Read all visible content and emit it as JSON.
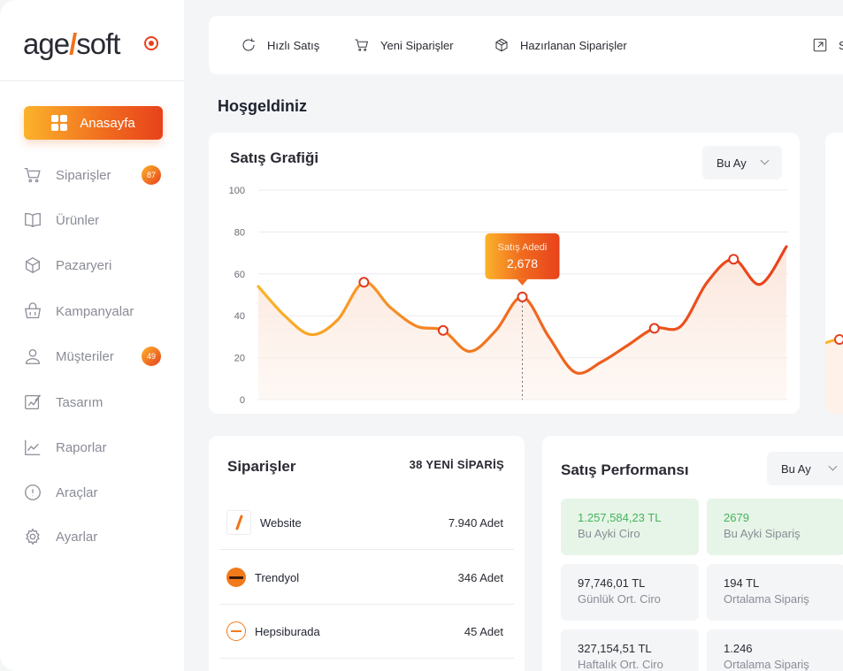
{
  "brand": {
    "name_left": "age",
    "name_right": "soft"
  },
  "sidebar": {
    "home": "Anasayfa",
    "items": [
      {
        "label": "Siparişler",
        "icon": "cart-icon",
        "badge": "87"
      },
      {
        "label": "Ürünler",
        "icon": "book-icon"
      },
      {
        "label": "Pazaryeri",
        "icon": "box-icon"
      },
      {
        "label": "Kampanyalar",
        "icon": "basket-icon"
      },
      {
        "label": "Müşteriler",
        "icon": "user-icon",
        "badge": "49"
      },
      {
        "label": "Tasarım",
        "icon": "design-icon"
      },
      {
        "label": "Raporlar",
        "icon": "chart-icon"
      },
      {
        "label": "Araçlar",
        "icon": "info-icon"
      },
      {
        "label": "Ayarlar",
        "icon": "gear-icon"
      }
    ]
  },
  "topbar": {
    "items": [
      {
        "label": "Hızlı Satış",
        "icon": "refresh-icon"
      },
      {
        "label": "Yeni Siparişler",
        "icon": "cart-icon"
      },
      {
        "label": "Hazırlanan Siparişler",
        "icon": "package-icon"
      },
      {
        "label": "S",
        "icon": "external-link-icon"
      }
    ]
  },
  "welcome": "Hoşgeldiniz",
  "sales_chart": {
    "title": "Satış Grafiği",
    "period": "Bu Ay",
    "tooltip_label": "Satış Adedi",
    "tooltip_value": "2,678",
    "colors": {
      "start": "#fbb32b",
      "mid": "#f06a1e",
      "end": "#e8421c"
    }
  },
  "chart_data": {
    "type": "line",
    "title": "Satış Grafiği",
    "ylim": [
      0,
      100
    ],
    "yticks": [
      "100",
      "80",
      "60",
      "40",
      "20",
      "0"
    ],
    "x": [
      0,
      1,
      2,
      3,
      4,
      5,
      6,
      7,
      8,
      9,
      10,
      11,
      12,
      13,
      14,
      15,
      16,
      17,
      18,
      19,
      20
    ],
    "values": [
      54,
      40,
      31,
      38,
      56,
      44,
      35,
      33,
      23,
      33,
      49,
      30,
      13,
      18,
      26,
      34,
      35,
      56,
      67,
      55,
      73
    ],
    "markers": [
      4,
      7,
      10,
      15,
      18
    ],
    "highlight_index": 10
  },
  "orders": {
    "title": "Siparişler",
    "new_count": "38 YENİ SİPARİŞ",
    "rows": [
      {
        "name": "Website",
        "count": "7.940 Adet",
        "icon": "website-slash-icon"
      },
      {
        "name": "Trendyol",
        "count": "346 Adet",
        "icon": "trendyol-logo-icon"
      },
      {
        "name": "Hepsiburada",
        "count": "45 Adet",
        "icon": "hepsiburada-logo-icon"
      }
    ]
  },
  "performance": {
    "title": "Satış Performansı",
    "period": "Bu Ay",
    "stats": [
      {
        "value": "1.257,584,23 TL",
        "label": "Bu Ayki Ciro",
        "highlight": true
      },
      {
        "value": "2679",
        "label": "Bu Ayki Sipariş",
        "highlight": true
      },
      {
        "value": "97,746,01 TL",
        "label": "Günlük Ort. Ciro"
      },
      {
        "value": "194 TL",
        "label": "Ortalama Sipariş"
      },
      {
        "value": "327,154,51 TL",
        "label": "Haftalık Ort. Ciro"
      },
      {
        "value": "1.246",
        "label": "Ortalama Sipariş"
      }
    ]
  }
}
